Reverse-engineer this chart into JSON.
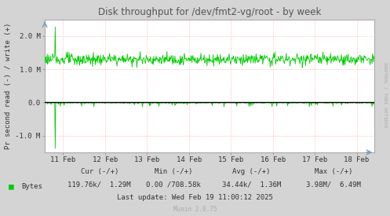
{
  "title": "Disk throughput for /dev/fmt2-vg/root - by week",
  "ylabel": "Pr second read (-) / write (+)",
  "xlabel_dates": [
    "11 Feb",
    "12 Feb",
    "13 Feb",
    "14 Feb",
    "15 Feb",
    "16 Feb",
    "17 Feb",
    "18 Feb"
  ],
  "ylim": [
    -1500000,
    2500000
  ],
  "yticks": [
    -1000000,
    0.0,
    1000000,
    2000000
  ],
  "ytick_labels": [
    "-1.0 M",
    "0.0",
    "1.0 M",
    "2.0 M"
  ],
  "bg_color": "#d4d4d4",
  "plot_bg_color": "#ffffff",
  "grid_color": "#ffaaaa",
  "line_color": "#00cc00",
  "title_color": "#555555",
  "text_color": "#333333",
  "legend_label": "Bytes",
  "legend_color": "#00cc00",
  "footer_cur_label": "Cur (-/+)",
  "footer_min_label": "Min (-/+)",
  "footer_avg_label": "Avg (-/+)",
  "footer_max_label": "Max (-/+)",
  "footer_bytes_cur": "119.76k/  1.29M",
  "footer_bytes_min": "0.00 /708.58k",
  "footer_bytes_avg": "34.44k/  1.36M",
  "footer_bytes_max": "3.98M/  6.49M",
  "footer_update": "Last update: Wed Feb 19 11:00:12 2025",
  "footer_munin": "Munin 2.0.75",
  "rrdtool_text": "RRDTOOL / TOBI OETIKER",
  "num_points": 700,
  "baseline_write": 1300000,
  "noise_write": 80000,
  "spike_write_idx": 22,
  "spike_write_val": 2250000,
  "spike_read_idx": 22,
  "spike_read_val": -1380000
}
